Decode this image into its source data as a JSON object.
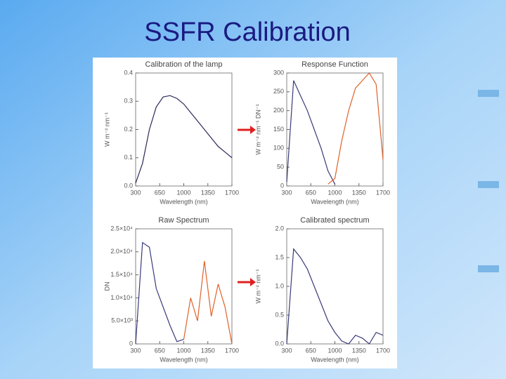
{
  "title": "SSFR Calibration",
  "chart_data": [
    {
      "type": "line",
      "title": "Calibration of the lamp",
      "x_label": "Wavelength (nm)",
      "y_label": "W m⁻² nm⁻¹",
      "x": [
        300,
        400,
        500,
        600,
        700,
        800,
        900,
        1000,
        1100,
        1200,
        1300,
        1400,
        1500,
        1600,
        1700
      ],
      "series": [
        {
          "name": null,
          "color": "#2a2a5a",
          "values": [
            0.01,
            0.08,
            0.2,
            0.28,
            0.315,
            0.32,
            0.31,
            0.29,
            0.26,
            0.23,
            0.2,
            0.17,
            0.14,
            0.12,
            0.1
          ]
        }
      ],
      "xlim": [
        300,
        1700
      ],
      "xticks": [
        300,
        650,
        1000,
        1350,
        1700
      ],
      "ylim": [
        0,
        0.4
      ],
      "yticks": [
        {
          "value": 0,
          "label": "0.0"
        },
        0.1,
        0.2,
        0.3,
        0.4
      ]
    },
    {
      "type": "line",
      "title": "Response Function",
      "x_label": "Wavelength (nm)",
      "y_label": "W m⁻² nm⁻¹ DN⁻¹",
      "x": [
        300,
        400,
        500,
        600,
        700,
        800,
        900,
        1000,
        1100,
        1200,
        1300,
        1400,
        1500,
        1600,
        1700
      ],
      "series": [
        {
          "name": null,
          "color": "#3a3a7a",
          "values": [
            10,
            280,
            240,
            200,
            150,
            100,
            40,
            5,
            null,
            null,
            null,
            null,
            null,
            null,
            null
          ]
        },
        {
          "name": null,
          "color": "#e0622a",
          "values": [
            null,
            null,
            null,
            null,
            null,
            null,
            5,
            20,
            120,
            200,
            260,
            280,
            300,
            270,
            70
          ]
        }
      ],
      "xlim": [
        300,
        1700
      ],
      "xticks": [
        300,
        650,
        1000,
        1350,
        1700
      ],
      "ylim": [
        0,
        300
      ],
      "yticks": [
        0,
        50,
        100,
        150,
        200,
        250,
        300
      ]
    },
    {
      "type": "line",
      "title": "Raw Spectrum",
      "x_label": "Wavelength (nm)",
      "y_label": "DN",
      "x": [
        300,
        400,
        500,
        600,
        700,
        800,
        900,
        1000,
        1100,
        1200,
        1300,
        1400,
        1500,
        1600,
        1700
      ],
      "series": [
        {
          "name": null,
          "color": "#3a3a7a",
          "values": [
            0,
            22000,
            21000,
            12000,
            8000,
            4000,
            500,
            1000,
            null,
            null,
            null,
            null,
            null,
            null,
            null
          ]
        },
        {
          "name": null,
          "color": "#e0622a",
          "values": [
            null,
            null,
            null,
            null,
            null,
            null,
            null,
            1000,
            10000,
            5000,
            18000,
            6000,
            13000,
            8000,
            0
          ]
        }
      ],
      "xlim": [
        300,
        1700
      ],
      "xticks": [
        300,
        650,
        1000,
        1350,
        1700
      ],
      "ylim": [
        0,
        25000
      ],
      "yticks": [
        0,
        {
          "value": 5000,
          "label": "5.0×10³"
        },
        {
          "value": 10000,
          "label": "1.0×10⁴"
        },
        {
          "value": 15000,
          "label": "1.5×10⁴"
        },
        {
          "value": 20000,
          "label": "2.0×10⁴"
        },
        {
          "value": 25000,
          "label": "2.5×10⁴"
        }
      ]
    },
    {
      "type": "line",
      "title": "Calibrated spectrum",
      "x_label": "Wavelength (nm)",
      "y_label": "W m⁻² nm⁻¹",
      "x": [
        300,
        400,
        500,
        600,
        700,
        800,
        900,
        1000,
        1100,
        1200,
        1300,
        1400,
        1500,
        1600,
        1700
      ],
      "series": [
        {
          "name": null,
          "color": "#3a3a7a",
          "values": [
            0,
            1.65,
            1.5,
            1.3,
            1.0,
            0.7,
            0.4,
            0.2,
            0.05,
            0,
            0.15,
            0.1,
            0,
            0.2,
            0.15
          ]
        }
      ],
      "xlim": [
        300,
        1700
      ],
      "xticks": [
        300,
        650,
        1000,
        1350,
        1700
      ],
      "ylim": [
        0,
        2
      ],
      "yticks": [
        {
          "value": 0,
          "label": "0.0"
        },
        0.5,
        {
          "value": 1,
          "label": "1.0"
        },
        1.5,
        {
          "value": 2,
          "label": "2.0"
        }
      ]
    }
  ]
}
